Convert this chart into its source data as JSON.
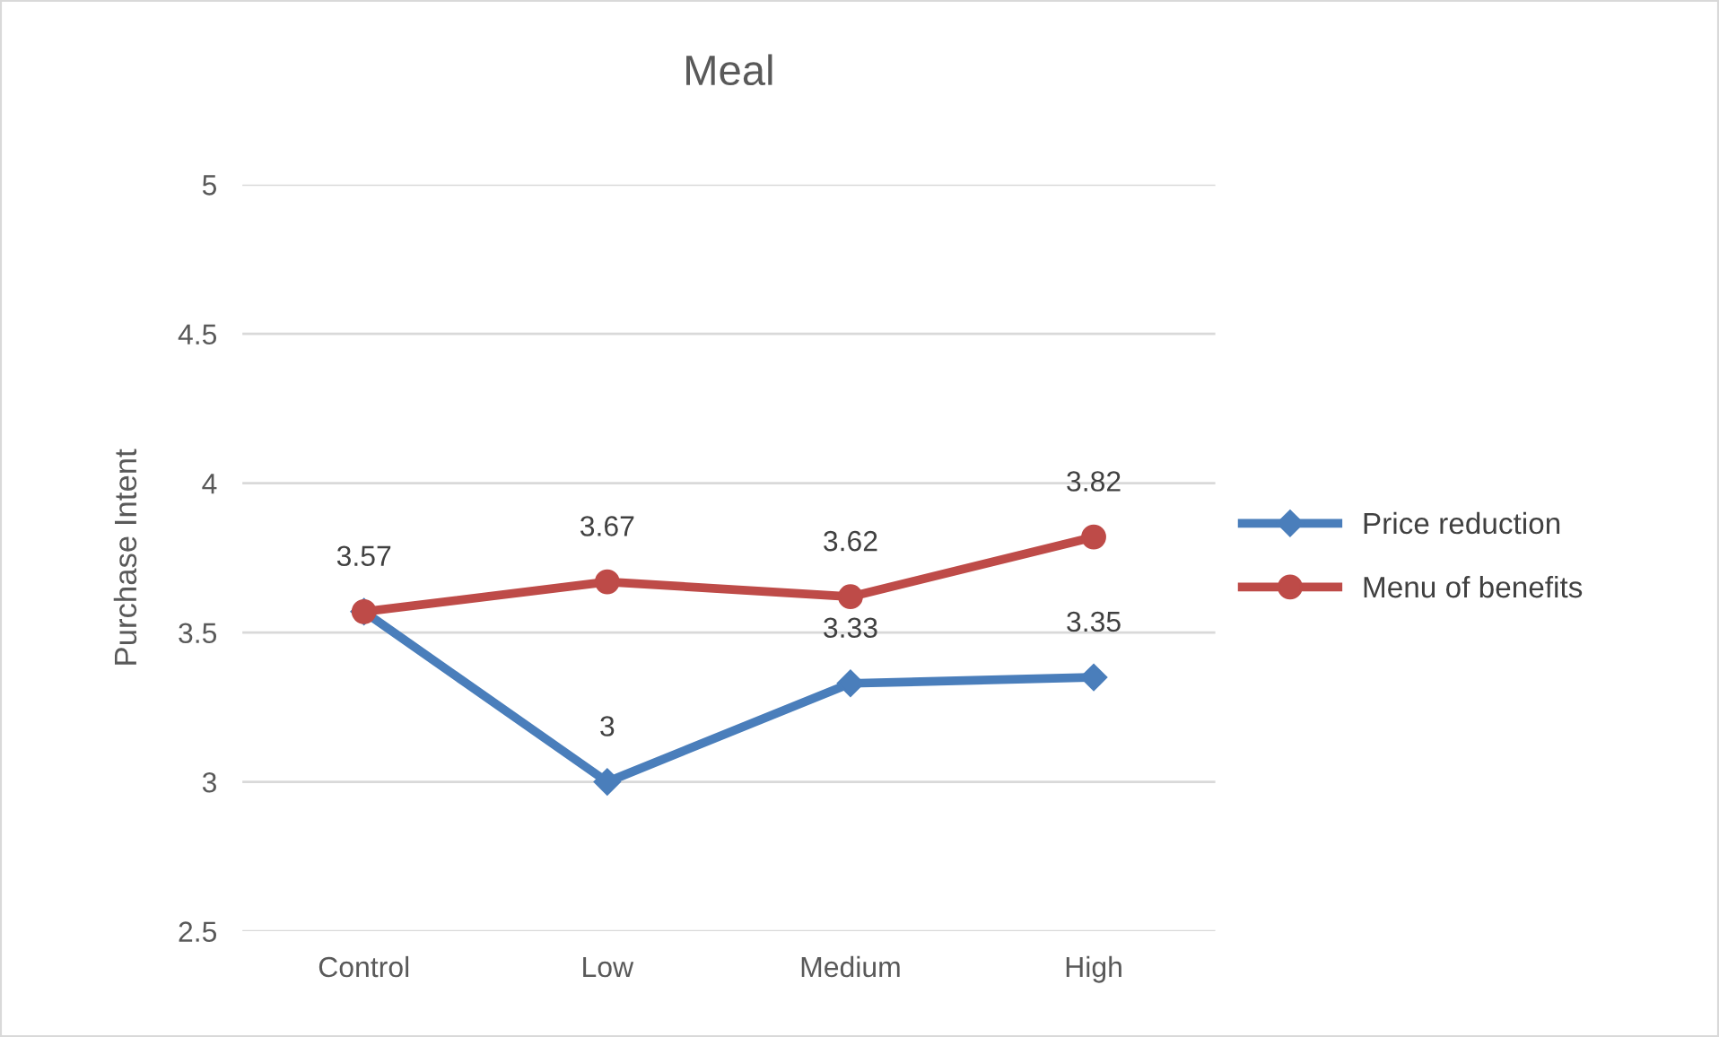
{
  "chart_data": {
    "type": "line",
    "title": "Meal",
    "ylabel": "Purchase Intent",
    "categories": [
      "Control",
      "Low",
      "Medium",
      "High"
    ],
    "series": [
      {
        "name": "Price reduction",
        "color": "#4a7ebb",
        "marker": "diamond",
        "values": [
          3.57,
          3,
          3.33,
          3.35
        ],
        "value_labels": [
          "3.57",
          "3",
          "3.33",
          "3.35"
        ]
      },
      {
        "name": "Menu of benefits",
        "color": "#be4b48",
        "marker": "circle",
        "values": [
          3.57,
          3.67,
          3.62,
          3.82
        ],
        "value_labels": [
          null,
          "3.67",
          "3.62",
          "3.82"
        ]
      }
    ],
    "ylim": [
      2.5,
      5
    ],
    "yticks": [
      2.5,
      3,
      3.5,
      4,
      4.5,
      5
    ],
    "grid": "y",
    "legend": "right",
    "line_style": "solid"
  }
}
